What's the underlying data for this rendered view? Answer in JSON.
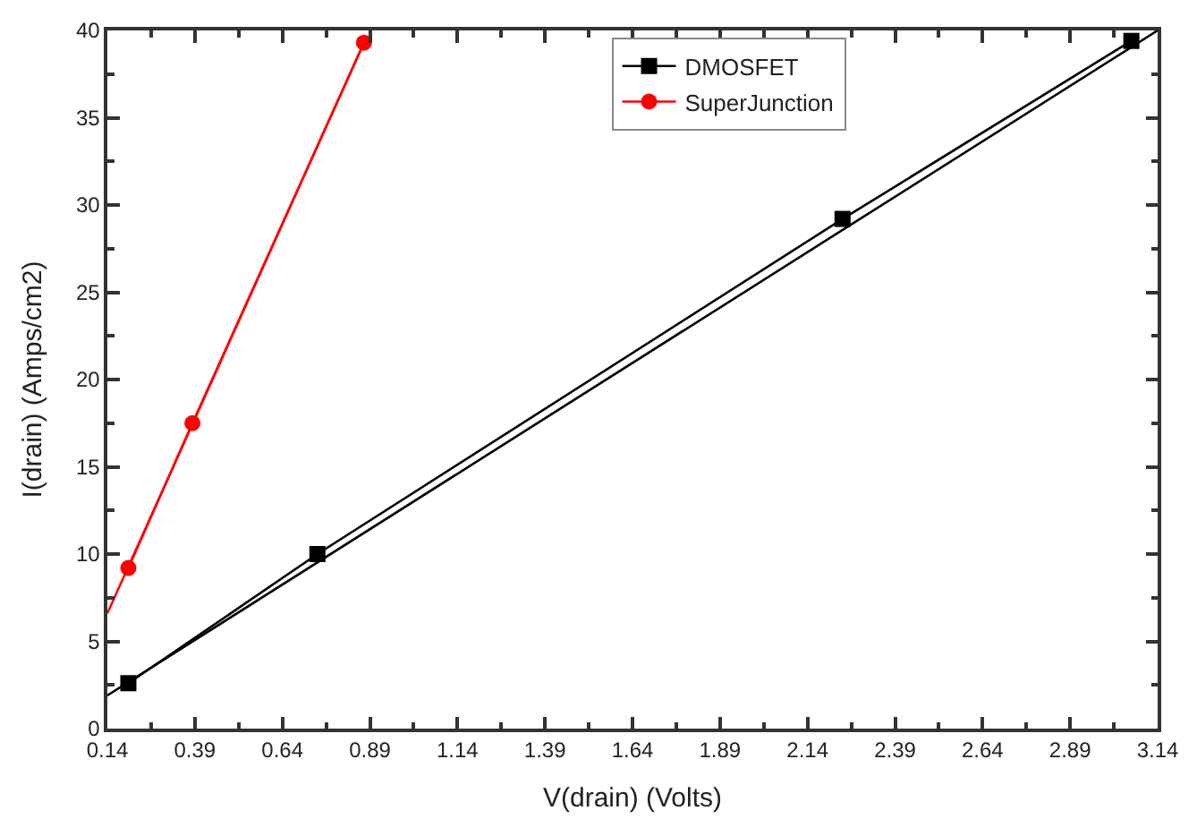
{
  "chart_data": {
    "type": "line",
    "xlabel": "V(drain) (Volts)",
    "ylabel": "I(drain) (Amps/cm2)",
    "xlim": [
      0.14,
      3.14
    ],
    "xticks": [
      0.14,
      0.39,
      0.64,
      0.89,
      1.14,
      1.39,
      1.64,
      1.89,
      2.14,
      2.39,
      2.64,
      2.89,
      3.14
    ],
    "ylim": [
      0,
      40
    ],
    "yticks": [
      0,
      5,
      10,
      15,
      20,
      25,
      30,
      35,
      40
    ],
    "legend": "top",
    "series": [
      {
        "name": "DMOSFET",
        "color": "#000000",
        "marker": "square",
        "x": [
          0.2,
          0.74,
          2.24,
          3.065
        ],
        "values": [
          2.6,
          10.0,
          29.2,
          39.4
        ]
      },
      {
        "name": "SuperJunction",
        "color": "#ff0000",
        "marker": "circle",
        "x": [
          0.2,
          0.383,
          0.873
        ],
        "values": [
          9.2,
          17.5,
          39.3
        ]
      },
      {
        "type": "line",
        "color": "#000000",
        "marker": "none",
        "x": [
          0.14,
          3.14
        ],
        "values": [
          1.9,
          40
        ]
      },
      {
        "type": "line",
        "color": "#ff0000",
        "marker": "none",
        "x": [
          0.14,
          0.873
        ],
        "values": [
          6.6,
          39.3
        ]
      }
    ]
  }
}
